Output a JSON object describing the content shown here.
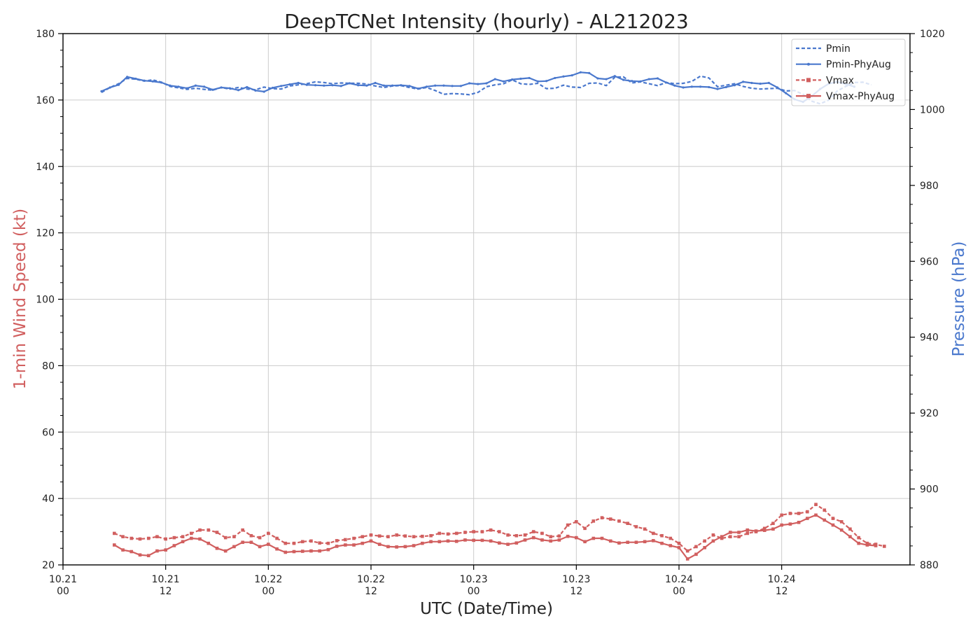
{
  "chart_data": {
    "type": "line",
    "title": "DeepTCNet Intensity (hourly) - AL212023",
    "xlabel": "UTC (Date/Time)",
    "ylabel_left": "1-min Wind Speed (kt)",
    "ylabel_right": "Pressure (hPa)",
    "xlim": [
      0,
      99
    ],
    "ylim_left": [
      20,
      180
    ],
    "ylim_right": [
      880,
      1020
    ],
    "yticks_left": [
      20,
      40,
      60,
      80,
      100,
      120,
      140,
      160,
      180
    ],
    "yticks_right": [
      880,
      900,
      920,
      940,
      960,
      980,
      1000,
      1020
    ],
    "xticks": [
      {
        "x": 0,
        "date": "10.21",
        "hour": "00"
      },
      {
        "x": 12,
        "date": "10.21",
        "hour": "12"
      },
      {
        "x": 24,
        "date": "10.22",
        "hour": "00"
      },
      {
        "x": 36,
        "date": "10.22",
        "hour": "12"
      },
      {
        "x": 48,
        "date": "10.23",
        "hour": "00"
      },
      {
        "x": 60,
        "date": "10.23",
        "hour": "12"
      },
      {
        "x": 72,
        "date": "10.24",
        "hour": "00"
      },
      {
        "x": 84,
        "date": "10.24",
        "hour": "12"
      }
    ],
    "grid": true,
    "legend_position": "top-right",
    "colors": {
      "pressure": "#4a78cd",
      "wind": "#d15f5f",
      "grid": "#cccccc",
      "axis": "#000000",
      "text": "#222222"
    },
    "series": [
      {
        "name": "Pmin",
        "axis": "right",
        "style": "dashed",
        "marker": "none",
        "color": "#4a78cd",
        "x_start": 4.5,
        "x_step": 1,
        "values": [
          1004.5,
          1005.8,
          1006.8,
          1008.2,
          1008,
          1007.5,
          1007.8,
          1007.2,
          1006.1,
          1005.7,
          1005.3,
          1005.6,
          1005.3,
          1005.1,
          1005.8,
          1005.4,
          1005.8,
          1005.4,
          1005.2,
          1005.9,
          1005.5,
          1005.4,
          1006.2,
          1006.5,
          1006.8,
          1007.3,
          1007.1,
          1006.8,
          1007.0,
          1006.9,
          1006.9,
          1006.7,
          1006.2,
          1005.8,
          1006.2,
          1006.3,
          1005.8,
          1005.4,
          1005.8,
          1005.0,
          1004.0,
          1004.2,
          1004.1,
          1003.9,
          1004.5,
          1006.0,
          1006.5,
          1006.8,
          1007.8,
          1006.8,
          1006.6,
          1006.9,
          1005.5,
          1005.6,
          1006.4,
          1005.9,
          1005.8,
          1006.9,
          1007.0,
          1006.3,
          1008.5,
          1008.6,
          1007.0,
          1007.3,
          1006.8,
          1006.3,
          1007.1,
          1006.8,
          1006.9,
          1007.4,
          1008.8,
          1008.3,
          1006.0,
          1006.4,
          1006.8,
          1006.1,
          1005.6,
          1005.4,
          1005.5,
          1005.6,
          1004.9,
          1005.0,
          1004.0,
          1002.2,
          1001.5,
          1002.5,
          1004.9,
          1006.1,
          1007.1,
          1007.2,
          1006.5
        ]
      },
      {
        "name": "Pmin-PhyAug",
        "axis": "right",
        "style": "solid",
        "marker": "dot",
        "color": "#4a78cd",
        "x_start": 4.5,
        "x_step": 1,
        "values": [
          1004.8,
          1005.8,
          1006.5,
          1008.6,
          1008.1,
          1007.6,
          1007.4,
          1007.1,
          1006.3,
          1006,
          1005.6,
          1006.3,
          1006.0,
          1005.2,
          1005.8,
          1005.6,
          1005.1,
          1005.9,
          1005.0,
          1004.7,
          1005.7,
          1006.2,
          1006.6,
          1007.0,
          1006.5,
          1006.4,
          1006.3,
          1006.4,
          1006.2,
          1006.9,
          1006.4,
          1006.3,
          1007.0,
          1006.3,
          1006.3,
          1006.4,
          1006.2,
          1005.5,
          1006.0,
          1006.3,
          1006.3,
          1006.2,
          1006.2,
          1006.9,
          1006.7,
          1006.9,
          1008.0,
          1007.4,
          1007.9,
          1008.1,
          1008.3,
          1007.4,
          1007.5,
          1008.3,
          1008.7,
          1009.0,
          1009.8,
          1009.6,
          1008.2,
          1008.0,
          1008.8,
          1007.8,
          1007.5,
          1007.4,
          1008.0,
          1008.2,
          1007.1,
          1006.3,
          1005.8,
          1006.0,
          1006.0,
          1005.9,
          1005.4,
          1005.9,
          1006.4,
          1007.3,
          1007.0,
          1006.8,
          1007.0,
          1005.8,
          1004.3,
          1002.7,
          1002.0,
          1003.5,
          1005.4,
          1006.8,
          1007.3,
          1006.7,
          1006
        ]
      },
      {
        "name": "Vmax",
        "axis": "left",
        "style": "dashed",
        "marker": "square",
        "color": "#d15f5f",
        "x_start": 6,
        "x_step": 1,
        "values": [
          29.5,
          28.5,
          28,
          27.8,
          28,
          28.5,
          27.8,
          28.2,
          28.5,
          29.5,
          30.5,
          30.5,
          29.8,
          28.2,
          28.5,
          30.5,
          28.8,
          28.2,
          29.5,
          28,
          26.5,
          26.5,
          27,
          27.2,
          26.6,
          26.5,
          27.3,
          27.6,
          28,
          28.5,
          29,
          28.7,
          28.5,
          29,
          28.7,
          28.5,
          28.6,
          28.8,
          29.5,
          29.3,
          29.5,
          29.8,
          30,
          30,
          30.5,
          30,
          29,
          28.8,
          29,
          30,
          29.5,
          28.5,
          28.7,
          32,
          33,
          31,
          33.2,
          34.2,
          33.8,
          33.2,
          32.5,
          31.5,
          30.8,
          29.5,
          28.8,
          28,
          26.5,
          24.2,
          25.5,
          27.2,
          29,
          28,
          28.5,
          28.5,
          29.5,
          30,
          31,
          32.5,
          35,
          35.5,
          35.5,
          36,
          38.2,
          36.5,
          34,
          33,
          30.8,
          28.2,
          26.5,
          26.2,
          25.6
        ]
      },
      {
        "name": "Vmax-PhyAug",
        "axis": "left",
        "style": "solid",
        "marker": "square",
        "color": "#d15f5f",
        "x_start": 6,
        "x_step": 1,
        "values": [
          26,
          24.5,
          24,
          23,
          22.8,
          24.2,
          24.5,
          25.8,
          27,
          28,
          27.8,
          26.5,
          25,
          24.2,
          25.5,
          26.8,
          26.8,
          25.5,
          26.2,
          24.8,
          23.8,
          24,
          24.1,
          24.2,
          24.2,
          24.6,
          25.6,
          26,
          26,
          26.5,
          27.2,
          26.2,
          25.5,
          25.4,
          25.5,
          25.8,
          26.5,
          27,
          27,
          27.2,
          27.1,
          27.5,
          27.4,
          27.4,
          27.2,
          26.6,
          26.2,
          26.6,
          27.5,
          28.2,
          27.5,
          27.2,
          27.5,
          28.6,
          28.2,
          27,
          28,
          28,
          27.2,
          26.6,
          26.8,
          26.8,
          27,
          27.3,
          26.5,
          25.8,
          25.2,
          21.8,
          23.2,
          25.2,
          27.2,
          28.5,
          29.8,
          29.8,
          30.5,
          30.2,
          30.4,
          30.8,
          32,
          32.3,
          32.8,
          34,
          35,
          33.5,
          32,
          30.5,
          28.5,
          26.5,
          26,
          25.8
        ]
      }
    ]
  }
}
